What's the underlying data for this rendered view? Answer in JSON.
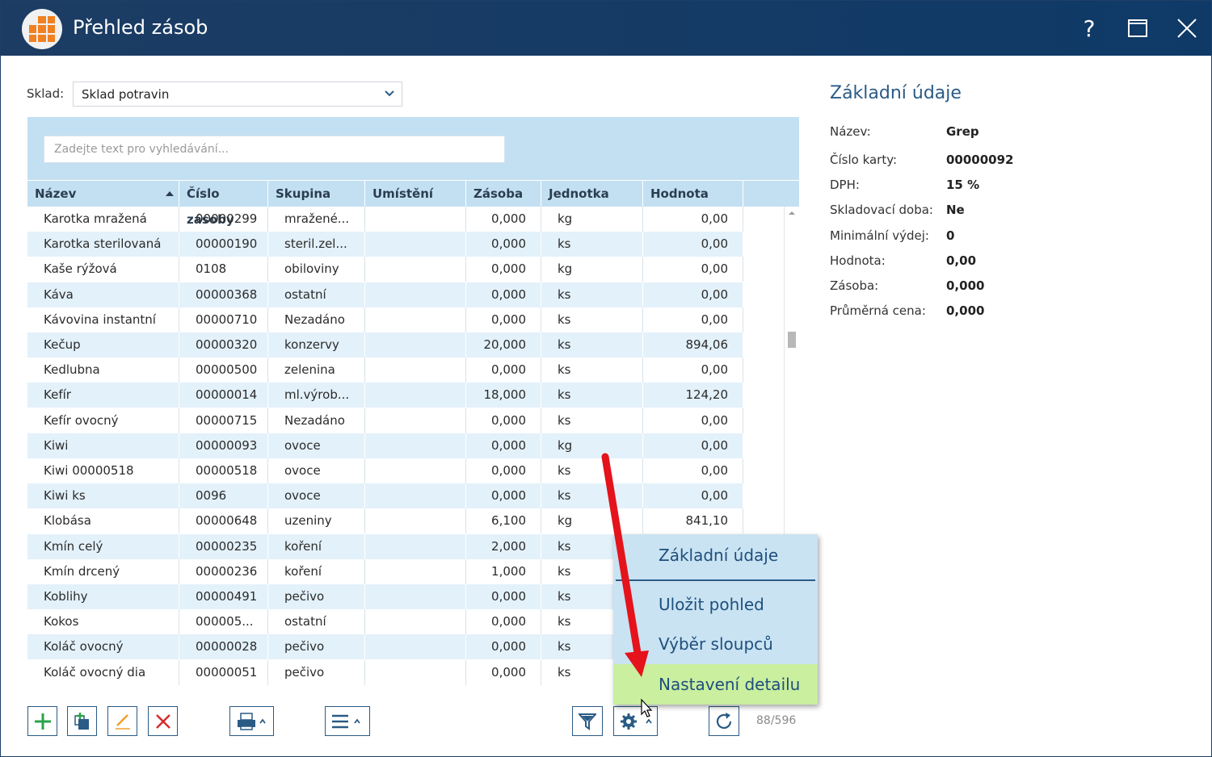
{
  "window": {
    "title": "Přehled zásob",
    "help_glyph": "?",
    "accent": "#2a5b85"
  },
  "filter": {
    "label": "Sklad:",
    "value": "Sklad potravin"
  },
  "search": {
    "placeholder": "Zadejte text pro vyhledávání..."
  },
  "table": {
    "columns": [
      "Název",
      "Číslo zásoby",
      "Skupina",
      "Umístění",
      "Zásoba",
      "Jednotka",
      "Hodnota"
    ],
    "sorted_column": "Název",
    "sort_direction": "ascending",
    "rows": [
      [
        "Karotka mražená",
        "00000299",
        "mražené...",
        "",
        "0,000",
        "kg",
        "0,00"
      ],
      [
        "Karotka sterilovaná",
        "00000190",
        "steril.zel...",
        "",
        "0,000",
        "ks",
        "0,00"
      ],
      [
        "Kaše rýžová",
        "0108",
        "obiloviny",
        "",
        "0,000",
        "kg",
        "0,00"
      ],
      [
        "Káva",
        "00000368",
        "ostatní",
        "",
        "0,000",
        "ks",
        "0,00"
      ],
      [
        "Kávovina instantní",
        "00000710",
        "Nezadáno",
        "",
        "0,000",
        "ks",
        "0,00"
      ],
      [
        "Kečup",
        "00000320",
        "konzervy",
        "",
        "20,000",
        "ks",
        "894,06"
      ],
      [
        "Kedlubna",
        "00000500",
        "zelenina",
        "",
        "0,000",
        "ks",
        "0,00"
      ],
      [
        "Kefír",
        "00000014",
        "ml.výrob...",
        "",
        "18,000",
        "ks",
        "124,20"
      ],
      [
        "Kefír ovocný",
        "00000715",
        "Nezadáno",
        "",
        "0,000",
        "ks",
        "0,00"
      ],
      [
        "Kiwi",
        "00000093",
        "ovoce",
        "",
        "0,000",
        "kg",
        "0,00"
      ],
      [
        "Kiwi 00000518",
        "00000518",
        "ovoce",
        "",
        "0,000",
        "ks",
        "0,00"
      ],
      [
        "Kiwi ks",
        "0096",
        "ovoce",
        "",
        "0,000",
        "ks",
        "0,00"
      ],
      [
        "Klobása",
        "00000648",
        "uzeniny",
        "",
        "6,100",
        "kg",
        "841,10"
      ],
      [
        "Kmín celý",
        "00000235",
        "koření",
        "",
        "2,000",
        "ks",
        ""
      ],
      [
        "Kmín drcený",
        "00000236",
        "koření",
        "",
        "1,000",
        "ks",
        ""
      ],
      [
        "Koblihy",
        "00000491",
        "pečivo",
        "",
        "0,000",
        "ks",
        ""
      ],
      [
        "Kokos",
        "000005...",
        "ostatní",
        "",
        "0,000",
        "ks",
        ""
      ],
      [
        "Koláč ovocný",
        "00000028",
        "pečivo",
        "",
        "0,000",
        "ks",
        ""
      ],
      [
        "Koláč ovocný dia",
        "00000051",
        "pečivo",
        "",
        "0,000",
        "ks",
        ""
      ]
    ]
  },
  "toolbar": {
    "counter": "88/596"
  },
  "detail": {
    "title": "Základní údaje",
    "fields": [
      {
        "label": "Název:",
        "value": "Grep"
      },
      {
        "label": "Číslo karty:",
        "value": "00000092"
      },
      {
        "label": "DPH:",
        "value": "15 %"
      },
      {
        "label": "Skladovací doba:",
        "value": "Ne"
      },
      {
        "label": "Minimální výdej:",
        "value": "0"
      },
      {
        "label": "Hodnota:",
        "value": "0,00"
      },
      {
        "label": "Zásoba:",
        "value": "0,000"
      },
      {
        "label": "Průměrná cena:",
        "value": "0,000"
      }
    ]
  },
  "menu": {
    "items": [
      "Základní údaje",
      "Uložit pohled",
      "Výběr sloupců",
      "Nastavení detailu"
    ],
    "highlighted": "Nastavení detailu",
    "highlight_color": "#c9ef9f"
  }
}
